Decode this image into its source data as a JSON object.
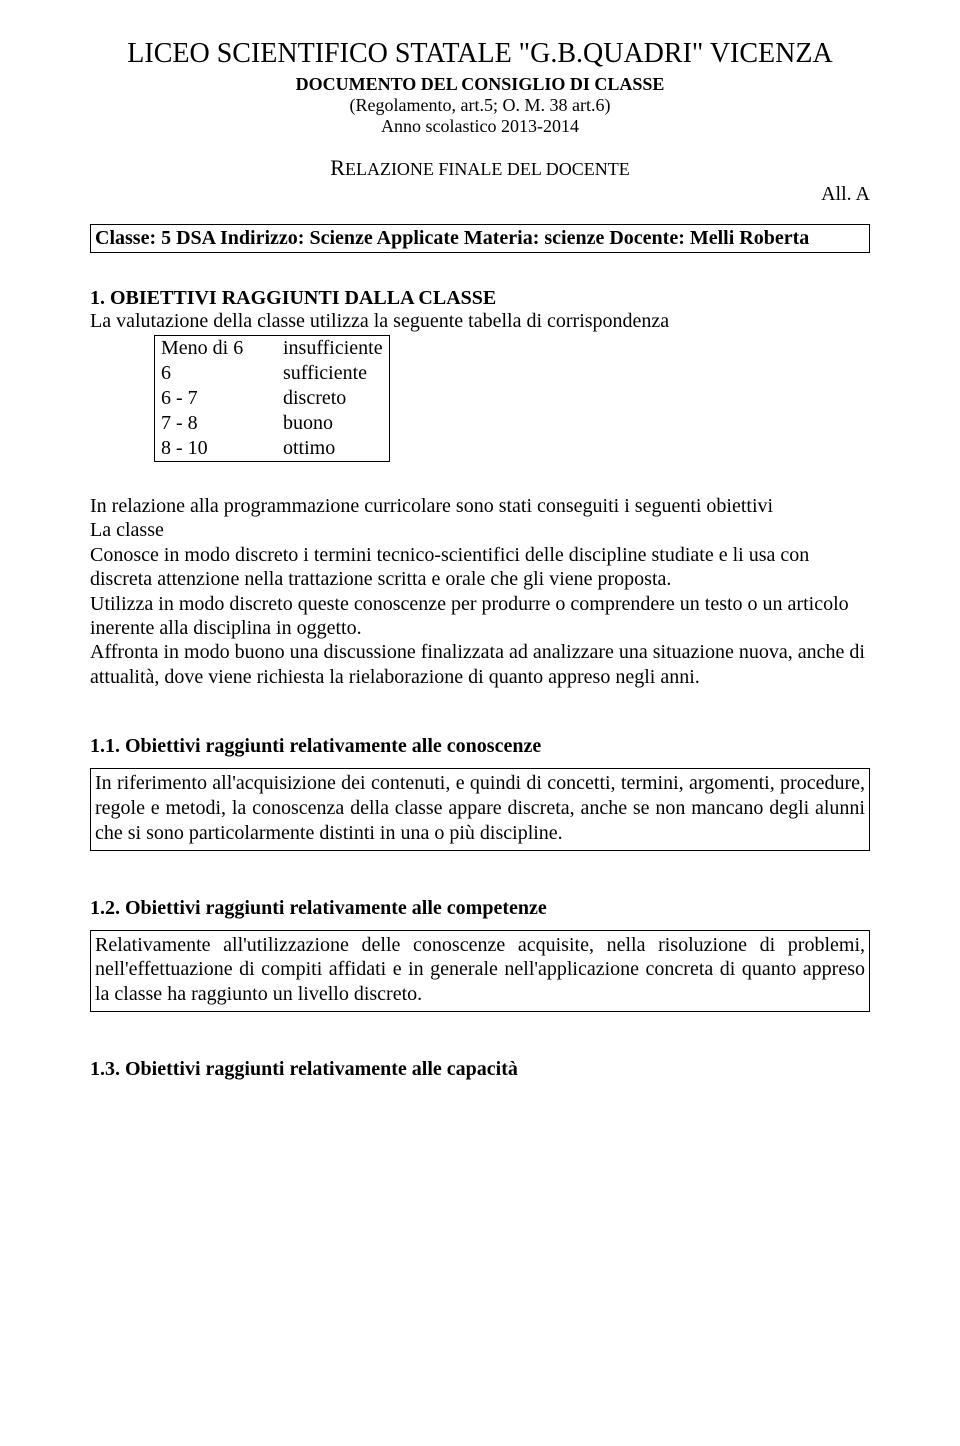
{
  "header": {
    "title": "LICEO SCIENTIFICO STATALE \"G.B.QUADRI\" VICENZA",
    "sub1": "DOCUMENTO DEL CONSIGLIO DI CLASSE",
    "sub2": "(Regolamento, art.5; O. M. 38 art.6)",
    "sub3": "Anno scolastico 2013-2014",
    "relation_prefix": "R",
    "relation_rest": "ELAZIONE FINALE DEL DOCENTE",
    "all_a": "All. A"
  },
  "class_box": "Classe: 5 DSA  Indirizzo: Scienze Applicate  Materia: scienze  Docente: Melli Roberta",
  "section1": {
    "heading": "1.   OBIETTIVI RAGGIUNTI DALLA CLASSE",
    "lead": "La valutazione della classe utilizza la seguente tabella di corrispondenza",
    "table": [
      {
        "l": "Meno di 6",
        "r": "insufficiente"
      },
      {
        "l": "6",
        "r": "sufficiente"
      },
      {
        "l": "6 - 7",
        "r": "discreto"
      },
      {
        "l": "7 - 8",
        "r": "buono"
      },
      {
        "l": "8 - 10",
        "r": "ottimo"
      }
    ],
    "intro": "In relazione alla programmazione curricolare sono stati conseguiti i seguenti obiettivi",
    "la_classe_label": "La classe",
    "para1": "Conosce in modo discreto i termini tecnico-scientifici delle discipline studiate e li usa con discreta attenzione nella trattazione scritta e orale che gli viene proposta.",
    "para2": "Utilizza in modo discreto queste conoscenze per produrre o comprendere un testo o un articolo inerente alla disciplina in oggetto.",
    "para3": "Affronta in modo buono una discussione finalizzata ad  analizzare una situazione nuova, anche di attualità, dove viene richiesta la rielaborazione di quanto appreso negli anni."
  },
  "sub11": {
    "heading": "1.1. Obiettivi raggiunti relativamente alle conoscenze",
    "box": "In riferimento all'acquisizione dei contenuti, e quindi di concetti, termini, argomenti, procedure, regole e metodi, la conoscenza della classe appare discreta, anche se non mancano degli alunni che si sono particolarmente distinti in una o più discipline."
  },
  "sub12": {
    "heading": "1.2. Obiettivi raggiunti relativamente alle competenze",
    "box": "Relativamente all'utilizzazione delle conoscenze acquisite, nella risoluzione di problemi, nell'effettuazione di compiti affidati e in generale nell'applicazione concreta di quanto appreso la classe ha raggiunto un livello discreto."
  },
  "sub13": {
    "heading": "1.3. Obiettivi raggiunti relativamente alle capacità"
  }
}
